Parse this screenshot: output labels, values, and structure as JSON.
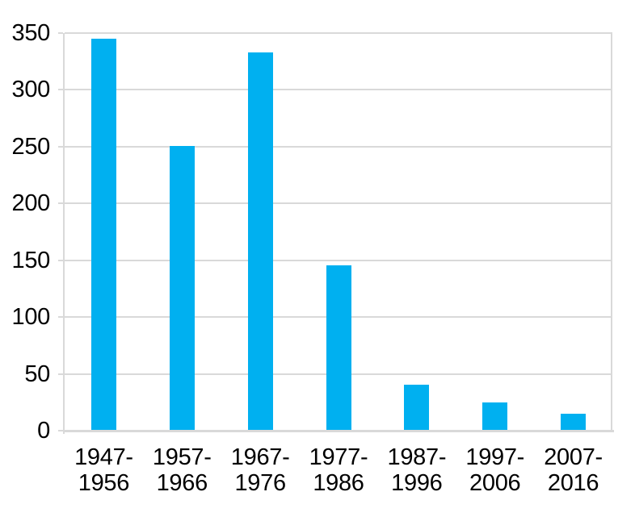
{
  "chart_data": {
    "type": "bar",
    "title": "",
    "xlabel": "",
    "ylabel": "",
    "categories": [
      "1947-\n1956",
      "1957-\n1966",
      "1967-\n1976",
      "1977-\n1986",
      "1987-\n1996",
      "1997-\n2006",
      "2007-\n2016"
    ],
    "values": [
      344,
      250,
      332,
      145,
      40,
      24,
      14
    ],
    "ylim": [
      0,
      350
    ],
    "yticks": [
      0,
      50,
      100,
      150,
      200,
      250,
      300,
      350
    ],
    "grid": true,
    "legend": false,
    "colors": {
      "bar": "#00B0F0",
      "gridline": "#D9D9D9",
      "axis": "#D9D9D9",
      "text": "#000000",
      "background": "#FFFFFF"
    }
  }
}
